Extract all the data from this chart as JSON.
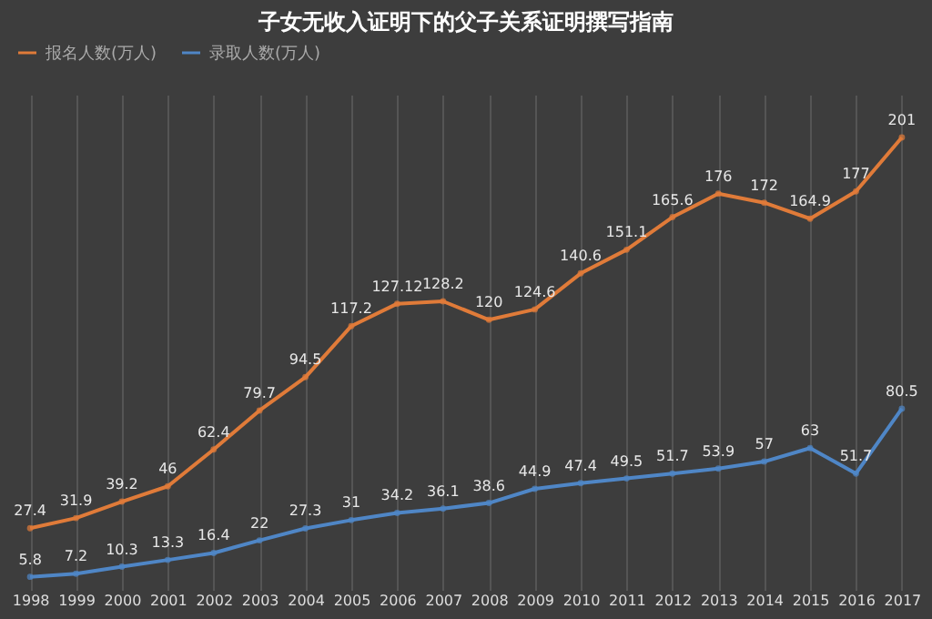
{
  "chart_data": {
    "type": "line",
    "title": "子女无收入证明下的父子关系证明撰写指南",
    "categories": [
      "1998",
      "1999",
      "2000",
      "2001",
      "2002",
      "2003",
      "2004",
      "2005",
      "2006",
      "2007",
      "2008",
      "2009",
      "2010",
      "2011",
      "2012",
      "2013",
      "2014",
      "2015",
      "2016",
      "2017"
    ],
    "series": [
      {
        "name": "报名人数(万人)",
        "color": "#e07b39",
        "values": [
          27.4,
          31.9,
          39.2,
          46,
          62.4,
          79.7,
          94.5,
          117.2,
          127.12,
          128.2,
          120,
          124.6,
          140.6,
          151.1,
          165.6,
          176,
          172,
          164.9,
          177,
          201
        ]
      },
      {
        "name": "录取人数(万人)",
        "color": "#4f86c6",
        "values": [
          5.8,
          7.2,
          10.3,
          13.3,
          16.4,
          22,
          27.3,
          31,
          34.2,
          36.1,
          38.6,
          44.9,
          47.4,
          49.5,
          51.7,
          53.9,
          57,
          63,
          51.7,
          80.5
        ]
      }
    ],
    "ylim": [
      0,
      220
    ],
    "tick_labels": "x",
    "data_labels": true,
    "grid": "x",
    "legend": "top",
    "marker": "circle",
    "line_style": "solid"
  }
}
